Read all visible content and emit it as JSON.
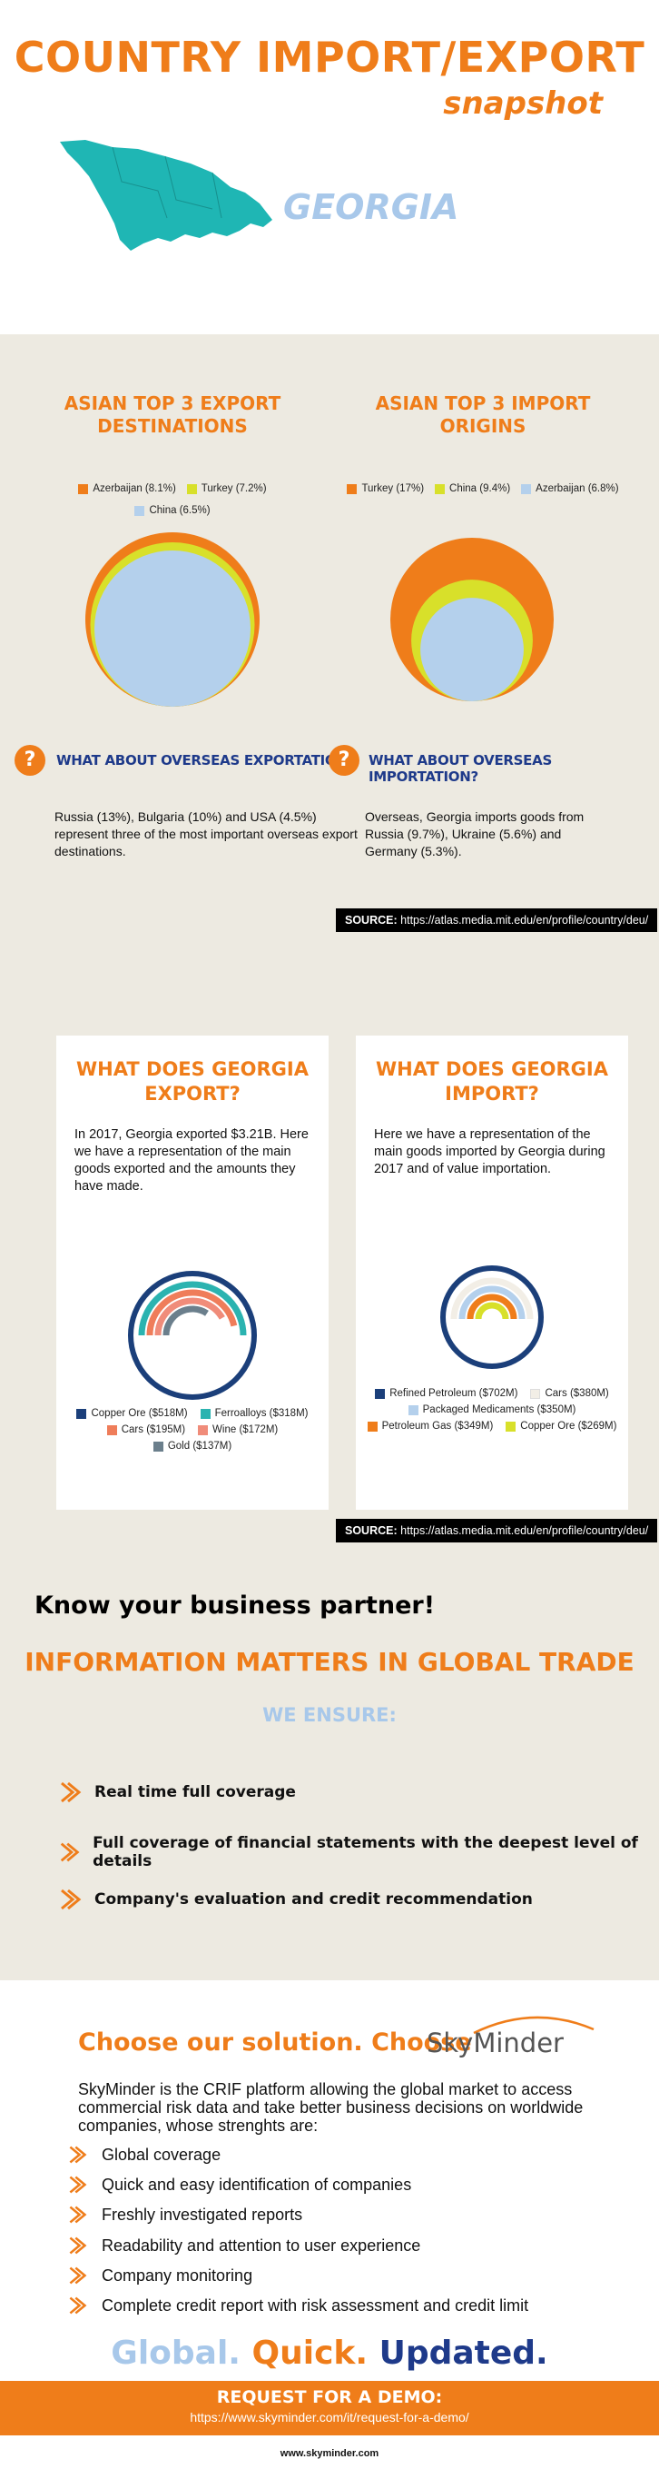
{
  "header": {
    "title": "COUNTRY IMPORT/EXPORT",
    "subtitle": "snapshot",
    "country": "GEORGIA",
    "map_icon": "georgia-map",
    "colors": {
      "accent": "#ef7d1a",
      "map": "#1fb6b4",
      "light_blue": "#a8c8ea",
      "navy": "#1e3a8a"
    }
  },
  "asia": {
    "export": {
      "title": "ASIAN TOP 3 EXPORT DESTINATIONS",
      "legend": [
        {
          "label": "Azerbaijan (8.1%)",
          "color": "#ef7d1a",
          "value": 8.1
        },
        {
          "label": "Turkey (7.2%)",
          "color": "#d8e02a",
          "value": 7.2
        },
        {
          "label": "China (6.5%)",
          "color": "#b4d0ec",
          "value": 6.5
        }
      ],
      "question": "WHAT ABOUT OVERSEAS EXPORTATION?",
      "text": "Russia (13%), Bulgaria (10%) and USA (4.5%) represent three of the most important overseas export destinations."
    },
    "import": {
      "title": "ASIAN TOP 3 IMPORT ORIGINS",
      "legend": [
        {
          "label": "Turkey (17%)",
          "color": "#ef7d1a",
          "value": 17
        },
        {
          "label": "China (9.4%)",
          "color": "#d8e02a",
          "value": 9.4
        },
        {
          "label": "Azerbaijan (6.8%)",
          "color": "#b4d0ec",
          "value": 6.8
        }
      ],
      "question": "WHAT ABOUT OVERSEAS IMPORTATION?",
      "text": "Overseas, Georgia imports goods from Russia (9.7%), Ukraine (5.6%) and Germany (5.3%)."
    },
    "source_label": "SOURCE:",
    "source_url": "https://atlas.media.mit.edu/en/profile/country/deu/"
  },
  "goods": {
    "export": {
      "title": "WHAT DOES GEORGIA EXPORT?",
      "text": "In 2017, Georgia exported $3.21B.  Here we have a representation of the main goods exported and the amounts they have made.",
      "legend": [
        {
          "label": "Copper Ore ($518M)",
          "color": "#1b3f7a",
          "value": 518
        },
        {
          "label": "Ferroalloys ($318M)",
          "color": "#2bb3b0",
          "value": 318
        },
        {
          "label": "Cars ($195M)",
          "color": "#ef7d5a",
          "value": 195
        },
        {
          "label": "Wine ($172M)",
          "color": "#f08c7a",
          "value": 172
        },
        {
          "label": "Gold ($137M)",
          "color": "#6b7f8c",
          "value": 137
        }
      ]
    },
    "import": {
      "title": "WHAT DOES GEORGIA IMPORT?",
      "text": "Here we have a representation of the main goods imported by Georgia during 2017 and of value importation.",
      "legend": [
        {
          "label": "Refined Petroleum ($702M)",
          "color": "#1b3f7a",
          "value": 702
        },
        {
          "label": "Cars ($380M)",
          "color": "#f2eee6",
          "value": 380
        },
        {
          "label": "Packaged Medicaments ($350M)",
          "color": "#b4d0ec",
          "value": 350
        },
        {
          "label": "Petroleum Gas ($349M)",
          "color": "#ef7d1a",
          "value": 349
        },
        {
          "label": "Copper Ore ($269M)",
          "color": "#d8e02a",
          "value": 269
        }
      ]
    },
    "source_label": "SOURCE:",
    "source_url": "https://atlas.media.mit.edu/en/profile/country/deu/"
  },
  "partner": {
    "headline": "Know your business partner!",
    "tagline": "INFORMATION MATTERS IN GLOBAL TRADE",
    "ensure_title": "WE ENSURE:",
    "items": [
      "Real time full coverage",
      "Full coverage of financial statements with the deepest level of details",
      "Company's evaluation and credit recommendation"
    ]
  },
  "solution": {
    "choose": "Choose our solution. Choose",
    "brand": "SkyMinder",
    "description": "SkyMinder is the CRIF platform allowing the global market to access commercial risk data and take better business decisions on worldwide companies, whose strenghts are:",
    "features": [
      "Global coverage",
      "Quick and easy identification of companies",
      "Freshly investigated reports",
      "Readability and attention to user experience",
      "Company monitoring",
      "Complete credit report with risk assessment and credit limit"
    ],
    "slogan_1": "Global.",
    "slogan_2": "Quick.",
    "slogan_3": "Updated.",
    "slogan_colors": {
      "global": "#a8c8ea",
      "quick": "#ef7d1a",
      "updated": "#1e3a8a"
    }
  },
  "demo": {
    "title": "REQUEST FOR A DEMO:",
    "url": "https://www.skyminder.com/it/request-for-a-demo/"
  },
  "footer": {
    "url": "www.skyminder.com"
  }
}
